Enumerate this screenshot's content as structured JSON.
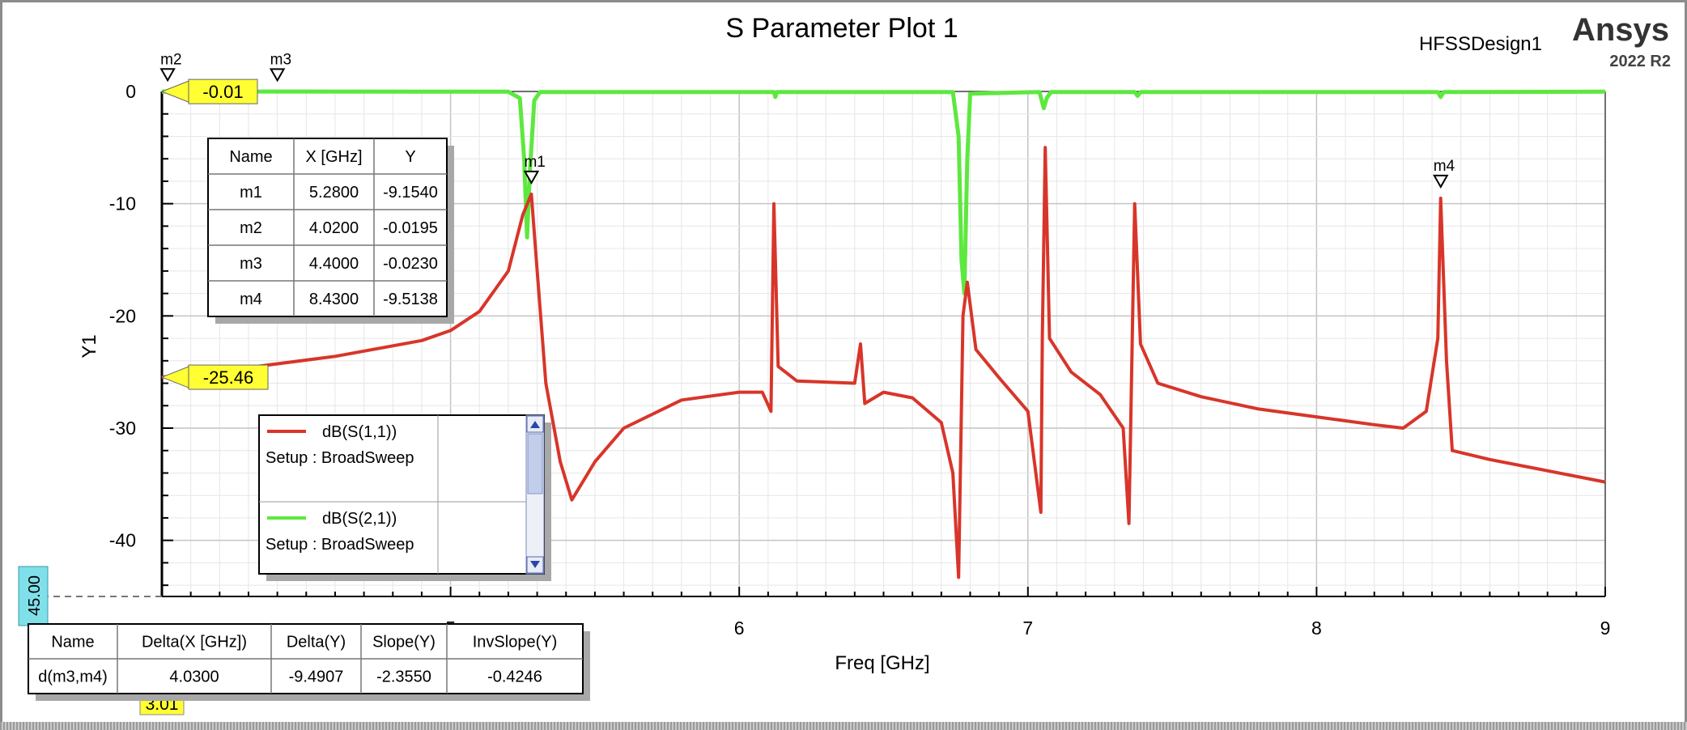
{
  "header": {
    "title": "S Parameter Plot 1",
    "design": "HFSSDesign1",
    "brand": "Ansys",
    "version": "2022 R2"
  },
  "chart_data": {
    "type": "line",
    "title": "S Parameter Plot 1",
    "xlabel": "Freq [GHz]",
    "ylabel": "Y1",
    "xlim": [
      4,
      9
    ],
    "ylim": [
      -45,
      0
    ],
    "xticks": [
      "5",
      "6",
      "7",
      "8",
      "9"
    ],
    "yticks": [
      "0",
      "-10",
      "-20",
      "-30",
      "-40"
    ],
    "grid": true,
    "series": [
      {
        "name": "dB(S(1,1))",
        "setup": "Setup : BroadSweep",
        "color": "#d8352a",
        "points": [
          [
            4.0,
            -25.46
          ],
          [
            4.3,
            -24.6
          ],
          [
            4.6,
            -23.6
          ],
          [
            4.9,
            -22.2
          ],
          [
            5.0,
            -21.3
          ],
          [
            5.1,
            -19.6
          ],
          [
            5.2,
            -16.0
          ],
          [
            5.25,
            -11.0
          ],
          [
            5.28,
            -9.15
          ],
          [
            5.3,
            -16.0
          ],
          [
            5.33,
            -26.0
          ],
          [
            5.38,
            -33.0
          ],
          [
            5.42,
            -36.4
          ],
          [
            5.5,
            -33.0
          ],
          [
            5.6,
            -30.0
          ],
          [
            5.8,
            -27.5
          ],
          [
            6.0,
            -26.8
          ],
          [
            6.08,
            -26.8
          ],
          [
            6.11,
            -28.5
          ],
          [
            6.12,
            -10.0
          ],
          [
            6.135,
            -24.5
          ],
          [
            6.2,
            -25.8
          ],
          [
            6.4,
            -26.0
          ],
          [
            6.42,
            -22.5
          ],
          [
            6.435,
            -27.8
          ],
          [
            6.5,
            -26.8
          ],
          [
            6.6,
            -27.3
          ],
          [
            6.7,
            -29.5
          ],
          [
            6.74,
            -34.0
          ],
          [
            6.76,
            -43.3
          ],
          [
            6.775,
            -20.0
          ],
          [
            6.79,
            -17.0
          ],
          [
            6.82,
            -23.0
          ],
          [
            6.9,
            -25.5
          ],
          [
            7.0,
            -28.5
          ],
          [
            7.045,
            -37.5
          ],
          [
            7.05,
            -22.0
          ],
          [
            7.06,
            -5.0
          ],
          [
            7.075,
            -22.0
          ],
          [
            7.15,
            -25.0
          ],
          [
            7.25,
            -27.0
          ],
          [
            7.33,
            -30.0
          ],
          [
            7.35,
            -38.5
          ],
          [
            7.37,
            -10.0
          ],
          [
            7.39,
            -22.5
          ],
          [
            7.45,
            -26.0
          ],
          [
            7.6,
            -27.2
          ],
          [
            7.8,
            -28.3
          ],
          [
            8.0,
            -29.0
          ],
          [
            8.2,
            -29.7
          ],
          [
            8.3,
            -30.0
          ],
          [
            8.38,
            -28.5
          ],
          [
            8.42,
            -22.0
          ],
          [
            8.43,
            -9.51
          ],
          [
            8.45,
            -24.0
          ],
          [
            8.47,
            -32.0
          ],
          [
            8.6,
            -32.8
          ],
          [
            8.8,
            -33.8
          ],
          [
            9.0,
            -34.8
          ]
        ]
      },
      {
        "name": "dB(S(2,1))",
        "setup": "Setup : BroadSweep",
        "color": "#5de83f",
        "points": [
          [
            4.0,
            -0.01
          ],
          [
            5.2,
            -0.02
          ],
          [
            5.24,
            -0.6
          ],
          [
            5.255,
            -6.0
          ],
          [
            5.265,
            -13.0
          ],
          [
            5.275,
            -7.0
          ],
          [
            5.29,
            -0.8
          ],
          [
            5.31,
            -0.05
          ],
          [
            6.12,
            -0.05
          ],
          [
            6.125,
            -0.5
          ],
          [
            6.13,
            -0.05
          ],
          [
            6.74,
            -0.05
          ],
          [
            6.76,
            -4.0
          ],
          [
            6.77,
            -15.0
          ],
          [
            6.78,
            -18.0
          ],
          [
            6.79,
            -6.0
          ],
          [
            6.8,
            -0.2
          ],
          [
            7.04,
            -0.05
          ],
          [
            7.055,
            -1.5
          ],
          [
            7.065,
            -0.6
          ],
          [
            7.08,
            -0.05
          ],
          [
            7.37,
            -0.05
          ],
          [
            7.38,
            -0.4
          ],
          [
            7.39,
            -0.05
          ],
          [
            8.42,
            -0.05
          ],
          [
            8.43,
            -0.5
          ],
          [
            8.44,
            -0.05
          ],
          [
            9.0,
            -0.02
          ]
        ]
      }
    ],
    "markers": [
      {
        "name": "m1",
        "x": 5.28,
        "y": -9.154
      },
      {
        "name": "m2",
        "x": 4.02,
        "y": -0.0195
      },
      {
        "name": "m3",
        "x": 4.4,
        "y": -0.023
      },
      {
        "name": "m4",
        "x": 8.43,
        "y": -9.5138
      }
    ],
    "axis_flags": [
      {
        "text": "-0.01",
        "y": -0.01
      },
      {
        "text": "-25.46",
        "y": -25.46
      }
    ],
    "x_flag": {
      "text": "3.01",
      "x": 3.01
    },
    "y_cursor_flag": {
      "text": "45.00",
      "y": -45
    }
  },
  "marker_table": {
    "headers": [
      "Name",
      "X [GHz]",
      "Y"
    ],
    "rows": [
      [
        "m1",
        "5.2800",
        "-9.1540"
      ],
      [
        "m2",
        "4.0200",
        "-0.0195"
      ],
      [
        "m3",
        "4.4000",
        "-0.0230"
      ],
      [
        "m4",
        "8.4300",
        "-9.5138"
      ]
    ]
  },
  "legend": {
    "items": [
      {
        "name": "dB(S(1,1))",
        "setup": "Setup : BroadSweep",
        "color": "#d8352a"
      },
      {
        "name": "dB(S(2,1))",
        "setup": "Setup : BroadSweep",
        "color": "#5de83f"
      }
    ]
  },
  "delta_table": {
    "headers": [
      "Name",
      "Delta(X [GHz])",
      "Delta(Y)",
      "Slope(Y)",
      "InvSlope(Y)"
    ],
    "rows": [
      [
        "d(m3,m4)",
        "4.0300",
        "-9.4907",
        "-2.3550",
        "-0.4246"
      ]
    ]
  }
}
